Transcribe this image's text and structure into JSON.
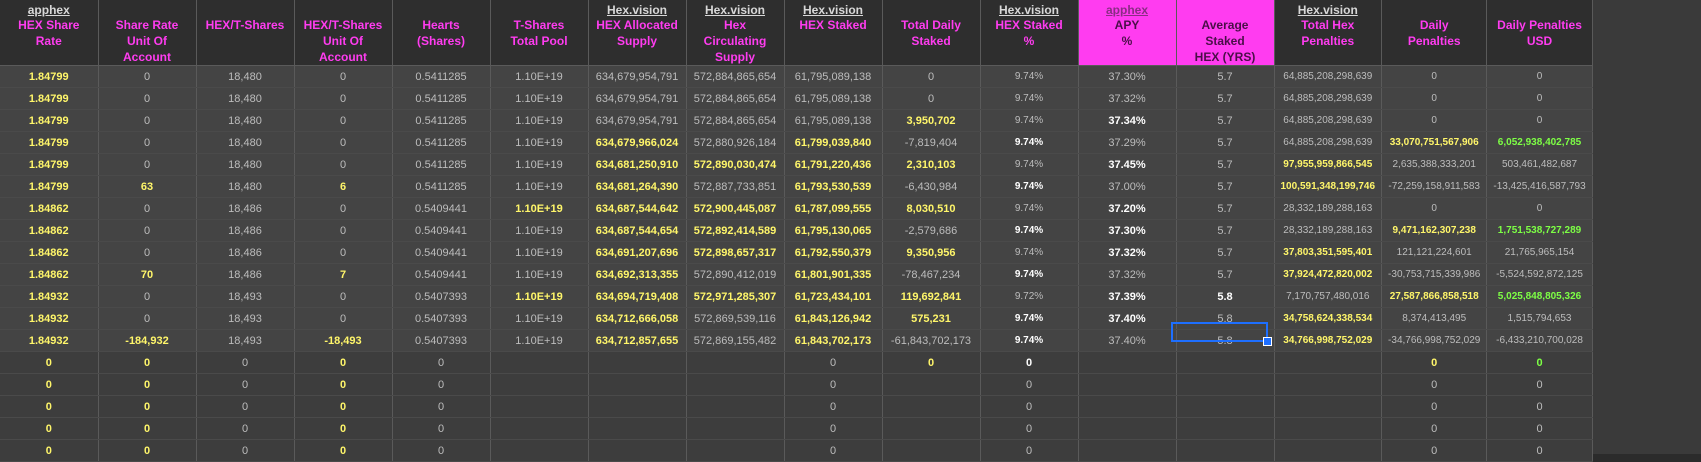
{
  "sources": {
    "c1": "apphex",
    "c7": "Hex.vision",
    "c8": "Hex.vision",
    "c9": "Hex.vision",
    "c11": "Hex.vision",
    "c12": "apphex",
    "c14": "Hex.vision"
  },
  "headers": [
    [
      "HEX Share Rate"
    ],
    [
      "Share Rate",
      "Unit Of Account"
    ],
    [
      "HEX/T-Shares"
    ],
    [
      "HEX/T-Shares",
      "Unit Of Account"
    ],
    [
      "Hearts",
      "(Shares)"
    ],
    [
      "T-Shares",
      "Total Pool"
    ],
    [
      "HEX Allocated",
      "Supply"
    ],
    [
      "Hex Circulating",
      "Supply"
    ],
    [
      "HEX Staked"
    ],
    [
      "Total Daily",
      "Staked"
    ],
    [
      "HEX Staked",
      "%"
    ],
    [
      "APY",
      "%"
    ],
    [
      "Average Staked",
      "HEX (YRS)"
    ],
    [
      "Total Hex",
      "Penalties"
    ],
    [
      "Daily",
      "Penalties"
    ],
    [
      "Daily Penalties",
      "USD"
    ]
  ],
  "rows": [
    [
      "1.84799",
      "0",
      "18,480",
      "0",
      "0.5411285",
      "1.10E+19",
      "634,679,954,791",
      "572,884,865,654",
      "61,795,089,138",
      "0",
      "9.74%",
      "37.30%",
      "5.7",
      "64,885,208,298,639",
      "0",
      "0"
    ],
    [
      "1.84799",
      "0",
      "18,480",
      "0",
      "0.5411285",
      "1.10E+19",
      "634,679,954,791",
      "572,884,865,654",
      "61,795,089,138",
      "0",
      "9.74%",
      "37.32%",
      "5.7",
      "64,885,208,298,639",
      "0",
      "0"
    ],
    [
      "1.84799",
      "0",
      "18,480",
      "0",
      "0.5411285",
      "1.10E+19",
      "634,679,954,791",
      "572,884,865,654",
      "61,795,089,138",
      "3,950,702",
      "9.74%",
      "37.34%",
      "5.7",
      "64,885,208,298,639",
      "0",
      "0"
    ],
    [
      "1.84799",
      "0",
      "18,480",
      "0",
      "0.5411285",
      "1.10E+19",
      "634,679,966,024",
      "572,880,926,184",
      "61,799,039,840",
      "-7,819,404",
      "9.74%",
      "37.29%",
      "5.7",
      "64,885,208,298,639",
      "33,070,751,567,906",
      "6,052,938,402,785"
    ],
    [
      "1.84799",
      "0",
      "18,480",
      "0",
      "0.5411285",
      "1.10E+19",
      "634,681,250,910",
      "572,890,030,474",
      "61,791,220,436",
      "2,310,103",
      "9.74%",
      "37.45%",
      "5.7",
      "97,955,959,866,545",
      "2,635,388,333,201",
      "503,461,482,687"
    ],
    [
      "1.84799",
      "63",
      "18,480",
      "6",
      "0.5411285",
      "1.10E+19",
      "634,681,264,390",
      "572,887,733,851",
      "61,793,530,539",
      "-6,430,984",
      "9.74%",
      "37.00%",
      "5.7",
      "100,591,348,199,746",
      "-72,259,158,911,583",
      "-13,425,416,587,793"
    ],
    [
      "1.84862",
      "0",
      "18,486",
      "0",
      "0.5409441",
      "1.10E+19",
      "634,687,544,642",
      "572,900,445,087",
      "61,787,099,555",
      "8,030,510",
      "9.74%",
      "37.20%",
      "5.7",
      "28,332,189,288,163",
      "0",
      "0"
    ],
    [
      "1.84862",
      "0",
      "18,486",
      "0",
      "0.5409441",
      "1.10E+19",
      "634,687,544,654",
      "572,892,414,589",
      "61,795,130,065",
      "-2,579,686",
      "9.74%",
      "37.30%",
      "5.7",
      "28,332,189,288,163",
      "9,471,162,307,238",
      "1,751,538,727,289"
    ],
    [
      "1.84862",
      "0",
      "18,486",
      "0",
      "0.5409441",
      "1.10E+19",
      "634,691,207,696",
      "572,898,657,317",
      "61,792,550,379",
      "9,350,956",
      "9.74%",
      "37.32%",
      "5.7",
      "37,803,351,595,401",
      "121,121,224,601",
      "21,765,965,154"
    ],
    [
      "1.84862",
      "70",
      "18,486",
      "7",
      "0.5409441",
      "1.10E+19",
      "634,692,313,355",
      "572,890,412,019",
      "61,801,901,335",
      "-78,467,234",
      "9.74%",
      "37.32%",
      "5.7",
      "37,924,472,820,002",
      "-30,753,715,339,986",
      "-5,524,592,872,125"
    ],
    [
      "1.84932",
      "0",
      "18,493",
      "0",
      "0.5407393",
      "1.10E+19",
      "634,694,719,408",
      "572,971,285,307",
      "61,723,434,101",
      "119,692,841",
      "9.72%",
      "37.39%",
      "5.8",
      "7,170,757,480,016",
      "27,587,866,858,518",
      "5,025,848,805,326"
    ],
    [
      "1.84932",
      "0",
      "18,493",
      "0",
      "0.5407393",
      "1.10E+19",
      "634,712,666,058",
      "572,869,539,116",
      "61,843,126,942",
      "575,231",
      "9.74%",
      "37.40%",
      "5.8",
      "34,758,624,338,534",
      "8,374,413,495",
      "1,515,794,653"
    ],
    [
      "1.84932",
      "-184,932",
      "18,493",
      "-18,493",
      "0.5407393",
      "1.10E+19",
      "634,712,857,655",
      "572,869,155,482",
      "61,843,702,173",
      "-61,843,702,173",
      "9.74%",
      "37.40%",
      "5.8",
      "34,766,998,752,029",
      "-34,766,998,752,029",
      "-6,433,210,700,028"
    ],
    [
      "0",
      "0",
      "0",
      "0",
      "0",
      "",
      "",
      "",
      "0",
      "0",
      "0",
      "",
      "",
      "",
      "0",
      "0"
    ],
    [
      "0",
      "0",
      "0",
      "0",
      "0",
      "",
      "",
      "",
      "0",
      "",
      "0",
      "",
      "",
      "",
      "0",
      "0"
    ],
    [
      "0",
      "0",
      "0",
      "0",
      "0",
      "",
      "",
      "",
      "0",
      "",
      "0",
      "",
      "",
      "",
      "0",
      "0"
    ],
    [
      "0",
      "0",
      "0",
      "0",
      "0",
      "",
      "",
      "",
      "0",
      "",
      "0",
      "",
      "",
      "",
      "0",
      "0"
    ],
    [
      "0",
      "0",
      "0",
      "0",
      "0",
      "",
      "",
      "",
      "0",
      "",
      "0",
      "",
      "",
      "",
      "0",
      "0"
    ]
  ],
  "colors": {
    "accent": "#ff3cf0",
    "yellow": "#fff66a",
    "green": "#7dff45",
    "selection": "#1e6fff"
  }
}
